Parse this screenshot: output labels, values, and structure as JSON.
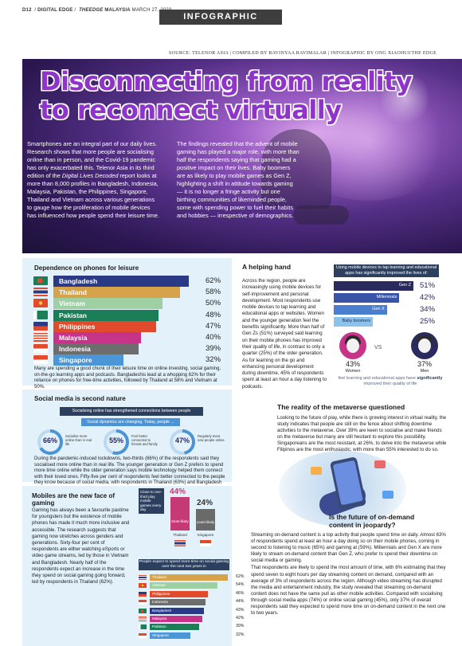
{
  "header": {
    "page_no": "D12",
    "section": "DIGITAL EDGE",
    "publication_prefix": "THE",
    "publication": "EDGE",
    "edition": "MALAYSIA",
    "date": "MARCH 27, 2023",
    "badge": "INFOGRAPHIC",
    "source_line": "SOURCE: TELENOR ASIA | COMPILED BY RAVINYAA RAVIMALAR | INFOGRAPHIC BY ONG XIAOHUI/THE EDGE"
  },
  "hero": {
    "headline_line1": "Disconnecting from reality",
    "headline_line2": "to reconnect virtually",
    "col1_a": "Smartphones are an integral part of our daily lives. Research shows that more people are socialising online than in person, and the Covid-19 pandemic has only exacerbated this. Telenor Asia in its third edition of the ",
    "col1_em": "Digital Lives Decoded",
    "col1_b": " report looks at more than 8,000 profiles in Bangladesh, Indonesia, Malaysia, Pakistan, the Philippines, Singapore, Thailand and Vietnam across various generations to gauge how the proliferation of mobile devices has influenced how people spend their leisure time.",
    "col2": "The findings revealed that the advent of mobile gaming has played a major role, with more than half the respondents saying that gaming had a positive impact on their lives. Baby boomers are as likely to play mobile games as Gen Z, highlighting a shift in attitude towards gaming — it is no longer a fringe activity but one birthing communities of likeminded people, some with spending power to fuel their habits and hobbies — irrespective of demographics."
  },
  "dependence": {
    "title": "Dependence on phones for leisure",
    "note": "Many are spending a good chunk of their leisure time on online investing, social gaming, on-the-go learning apps and podcasts. Bangladeshis lead at a whopping 62% for their reliance on phones for free-time activities, followed by Thailand at 58% and Vietnam at 50%."
  },
  "chart_data": [
    {
      "type": "bar",
      "title": "Dependence on phones for leisure",
      "categories": [
        "Bangladesh",
        "Thailand",
        "Vietnam",
        "Pakistan",
        "Philippines",
        "Malaysia",
        "Indonesia",
        "Singapore"
      ],
      "values": [
        62,
        58,
        50,
        48,
        47,
        40,
        39,
        32
      ],
      "labels": [
        "62%",
        "58%",
        "50%",
        "48%",
        "47%",
        "40%",
        "39%",
        "32%"
      ],
      "colors": [
        "#2b3a86",
        "#d6a24a",
        "#9ed0a4",
        "#1a7f56",
        "#e24a2c",
        "#c8338a",
        "#6d6d6d",
        "#4a96d8"
      ]
    },
    {
      "type": "bar",
      "title": "Using mobile devices to tap learning and educational apps has significantly improved the lives of:",
      "categories": [
        "Gen Z",
        "Millennials",
        "Gen X",
        "Baby boomers"
      ],
      "values": [
        51,
        42,
        34,
        25
      ],
      "labels": [
        "51%",
        "42%",
        "34%",
        "25%"
      ],
      "colors": [
        "#2a2a5e",
        "#3953a6",
        "#4a7fd0",
        "#8cc3ec"
      ]
    },
    {
      "type": "bar",
      "title": "People expect to spend more time on social gaming over the next two years in",
      "categories": [
        "Thailand",
        "Vietnam",
        "Philippines",
        "Indonesia",
        "Bangladesh",
        "Malaysia",
        "Pakistan",
        "Singapore"
      ],
      "values": [
        62,
        54,
        46,
        44,
        43,
        42,
        39,
        32
      ],
      "labels": [
        "62%",
        "54%",
        "46%",
        "44%",
        "43%",
        "42%",
        "39%",
        "32%"
      ],
      "colors": [
        "#d6a24a",
        "#9ed0a4",
        "#e24a2c",
        "#6d6d6d",
        "#2b3a86",
        "#c8338a",
        "#1a7f56",
        "#4a96d8"
      ]
    }
  ],
  "helping": {
    "title": "A helping hand",
    "text": "Across the region, people are increasingly using mobile devices for self-improvement and personal development. Most respondents use mobile devices to tap learning and educational apps or websites. Women and the younger generation feel the benefits significantly. More than half of Gen Zs (51%) surveyed said learning on their mobile phones has improved their quality of life, in contrast to only a quarter (25%) of the older generation. As for learning on the go and enhancing personal development during downtime, 45% of respondents spent at least an hour a day listening to podcasts.",
    "gen_header": "Using mobile devices to tap learning and educational apps has significantly improved the lives of:",
    "women_pct": "43%",
    "women_label": "Women",
    "men_pct": "37%",
    "men_label": "Men",
    "vs": "VS",
    "feel_a": "feel learning and educational apps have ",
    "feel_b": "significantly",
    "feel_c": " improved their quality of life"
  },
  "social": {
    "title": "Social media is second nature",
    "header": "Socialising online has strengthened connections between people",
    "sub": "Social dynamics are changing. Today, people ...",
    "ring1_val": "66%",
    "ring1_txt": "Socialise more online than in real life",
    "ring2_val": "55%",
    "ring2_txt": "Feel better connected to friends and family",
    "ring3_val": "47%",
    "ring3_txt": "Regularly meet new people online",
    "body": "During the pandemic-induced lockdowns, two-thirds (66%) of the respondents said they socialised more online than in real life. The younger generation or Gen Z prefers to spend more time online while the older generation says mobile technology helped them connect with their loved ones. Fifty-five per cent of respondents feel better connected to the people they know because of social media, with respondents in Thailand (63%) and Bangladesh (61%) responding most positively, while nearly half (47%) regularly meet new people online."
  },
  "metaverse": {
    "title": "The reality of the metaverse questioned",
    "text": "Looking to the future of play, while there is growing interest in virtual reality, the study indicates that people are still on the fence about shifting downtime activities to the metaverse. Over 39% are keen to socialise and make friends on the metaverse but many are still hesitant to explore this possibility. Singaporeans are the most resistant, at 26%, to delve into the metaverse while Filipinos are the most enthusiastic, with more than 55% interested to do so."
  },
  "ondemand": {
    "title": "Is the future of on-demand content in jeopardy?",
    "p1": "Streaming on-demand content is a top activity that people spend time on daily. Almost 63% of respondents spend at least an hour a day doing so on their mobile phones, coming in second to listening to music (65%) and gaming at (59%). Millennials and Gen X are more likely to stream on-demand content than Gen Z, who prefer to spend their downtime on social media or gaming.",
    "p2": "That respondents are likely to spend the most amount of time, with 8% estimating that they spend seven to eight hours per day streaming content on demand, compared with an average of 3% of respondents across the region. Although video streaming has disrupted the media and entertainment industry, the study revealed that streaming on-demand content does not have the same pull as other mobile activities. Compared with socialising through social media apps (74%) or online social gaming (45%), only 37% of overall respondents said they expected to spend more time on on-demand content in the next one to two years."
  },
  "mobiles": {
    "title": "Mobiles are the new face of gaming",
    "body": "Gaming has always been a favourite pastime for youngsters but the existence of mobile phones has made it much more inclusive and accessible. The research suggests that gaming now stretches across genders and generations. Sixty-four per cent of respondents are either watching eSports or video game streams, led by those in Vietnam and Bangladesh. Nearly half of the respondents expect an increase in the time they spend on social gaming going forward, led by respondents in Thailand (62%).",
    "close_box": "Close to one-third play mobile games every day",
    "most_pct": "44%",
    "most_label": "Most likely",
    "most_country": "Thailand",
    "least_pct": "24%",
    "least_label": "Least likely",
    "least_country": "Singapore",
    "expect_header": "People expect to spend more time on social gaming over the next two years in"
  }
}
